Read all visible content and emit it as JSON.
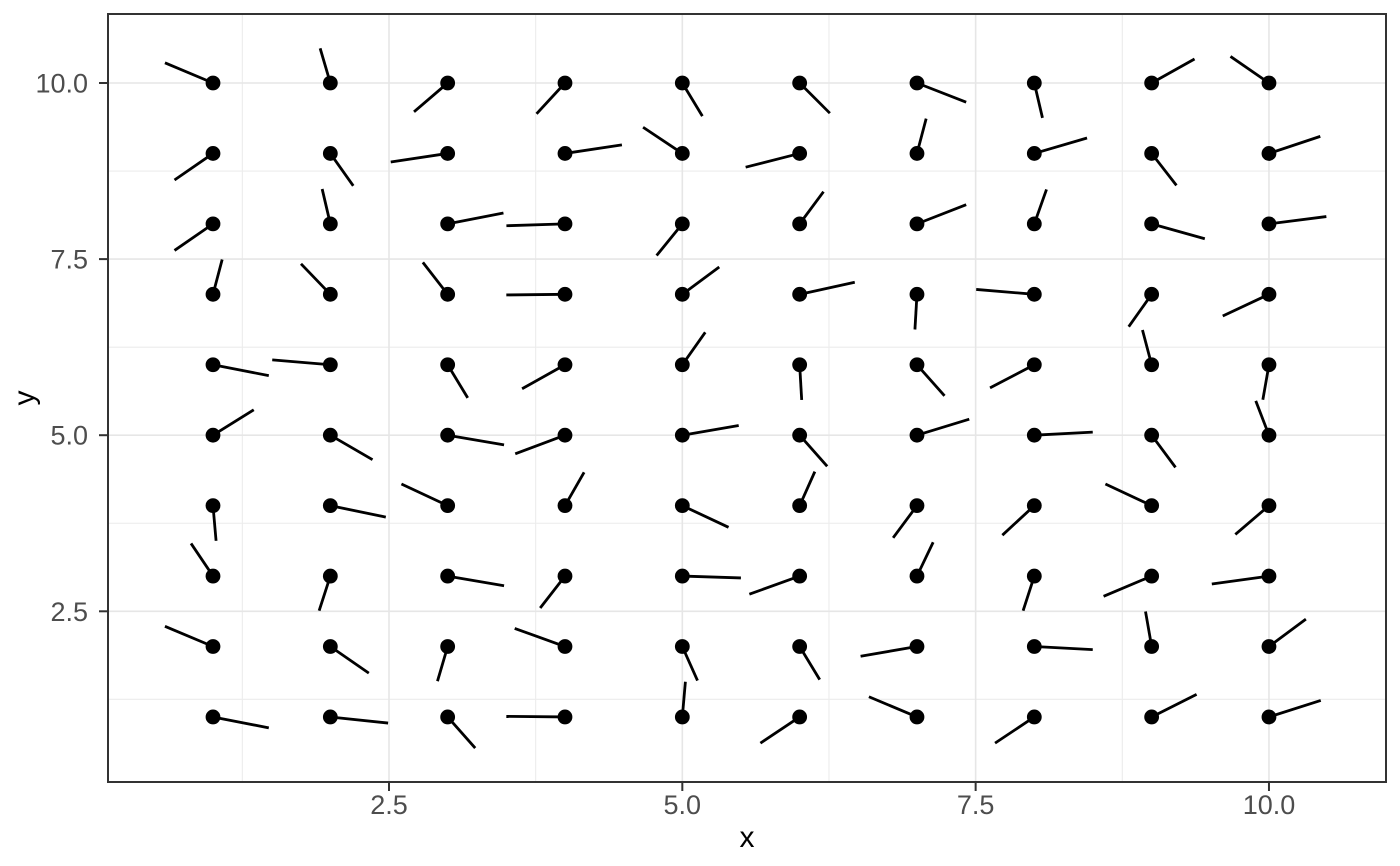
{
  "chart_data": {
    "type": "scatter",
    "subtype": "spoke-vector-field",
    "title": "",
    "xlabel": "x",
    "ylabel": "y",
    "xlim": [
      0.1,
      11.0
    ],
    "ylim": [
      0.08,
      10.98
    ],
    "grid": "major+minor",
    "legend": "none",
    "x_ticks": [
      {
        "v": 2.5,
        "label": "2.5"
      },
      {
        "v": 5.0,
        "label": "5.0"
      },
      {
        "v": 7.5,
        "label": "7.5"
      },
      {
        "v": 10.0,
        "label": "10.0"
      }
    ],
    "y_ticks": [
      {
        "v": 2.5,
        "label": "2.5"
      },
      {
        "v": 5.0,
        "label": "5.0"
      },
      {
        "v": 7.5,
        "label": "7.5"
      },
      {
        "v": 10.0,
        "label": "10.0"
      }
    ],
    "x_minor": [
      1.25,
      3.75,
      6.25,
      8.75
    ],
    "y_minor": [
      1.25,
      3.75,
      6.25,
      8.75
    ],
    "spoke_radius": 0.5,
    "spokes": [
      [
        1,
        10,
        145
      ],
      [
        2,
        10,
        100
      ],
      [
        3,
        10,
        -125
      ],
      [
        4,
        10,
        -119
      ],
      [
        5,
        10,
        -70
      ],
      [
        6,
        10,
        -59
      ],
      [
        7,
        10,
        -33
      ],
      [
        8,
        10,
        -82
      ],
      [
        9,
        10,
        43
      ],
      [
        10,
        10,
        131
      ],
      [
        1,
        9,
        -131
      ],
      [
        2,
        9,
        -67
      ],
      [
        3,
        9,
        194
      ],
      [
        4,
        9,
        14
      ],
      [
        5,
        9,
        132
      ],
      [
        6,
        9,
        -157
      ],
      [
        7,
        9,
        81
      ],
      [
        8,
        9,
        26
      ],
      [
        9,
        9,
        -65
      ],
      [
        10,
        9,
        29
      ],
      [
        1,
        8,
        -131
      ],
      [
        2,
        8,
        98
      ],
      [
        3,
        8,
        18
      ],
      [
        4,
        8,
        183
      ],
      [
        5,
        8,
        -116
      ],
      [
        6,
        8,
        66
      ],
      [
        7,
        8,
        33
      ],
      [
        8,
        8,
        78
      ],
      [
        9,
        8,
        -25
      ],
      [
        10,
        8,
        12
      ],
      [
        1,
        7,
        81
      ],
      [
        2,
        7,
        120
      ],
      [
        3,
        7,
        115
      ],
      [
        4,
        7,
        181
      ],
      [
        5,
        7,
        51
      ],
      [
        6,
        7,
        20
      ],
      [
        7,
        7,
        -92
      ],
      [
        8,
        7,
        172
      ],
      [
        9,
        7,
        -113
      ],
      [
        10,
        7,
        -142
      ],
      [
        1,
        6,
        -18
      ],
      [
        2,
        6,
        172
      ],
      [
        3,
        6,
        -70
      ],
      [
        4,
        6,
        -137
      ],
      [
        5,
        6,
        67
      ],
      [
        6,
        6,
        -88
      ],
      [
        7,
        6,
        -62
      ],
      [
        8,
        6,
        -139
      ],
      [
        9,
        6,
        99
      ],
      [
        10,
        6,
        -96
      ],
      [
        1,
        5,
        46
      ],
      [
        2,
        5,
        -44
      ],
      [
        3,
        5,
        -16
      ],
      [
        4,
        5,
        -148
      ],
      [
        5,
        5,
        16
      ],
      [
        6,
        5,
        -62
      ],
      [
        7,
        5,
        27
      ],
      [
        8,
        5,
        5
      ],
      [
        9,
        5,
        -66
      ],
      [
        10,
        5,
        103
      ],
      [
        1,
        4,
        -87
      ],
      [
        2,
        4,
        -19
      ],
      [
        3,
        4,
        142
      ],
      [
        4,
        4,
        71
      ],
      [
        5,
        4,
        -38
      ],
      [
        6,
        4,
        75
      ],
      [
        7,
        4,
        -114
      ],
      [
        8,
        4,
        -123
      ],
      [
        9,
        4,
        142
      ],
      [
        10,
        4,
        -125
      ],
      [
        1,
        3,
        112
      ],
      [
        2,
        3,
        -101
      ],
      [
        3,
        3,
        -16
      ],
      [
        4,
        3,
        -115
      ],
      [
        5,
        3,
        -3
      ],
      [
        6,
        3,
        -149
      ],
      [
        7,
        3,
        74
      ],
      [
        8,
        3,
        -101
      ],
      [
        9,
        3,
        -145
      ],
      [
        10,
        3,
        -167
      ],
      [
        1,
        2,
        145
      ],
      [
        2,
        2,
        -49
      ],
      [
        3,
        2,
        -100
      ],
      [
        4,
        2,
        149
      ],
      [
        5,
        2,
        -75
      ],
      [
        6,
        2,
        -70
      ],
      [
        7,
        2,
        -164
      ],
      [
        8,
        2,
        -5
      ],
      [
        9,
        2,
        96
      ],
      [
        10,
        2,
        51
      ],
      [
        1,
        1,
        -18
      ],
      [
        2,
        1,
        -10
      ],
      [
        3,
        1,
        -62
      ],
      [
        4,
        1,
        179
      ],
      [
        5,
        1,
        87
      ],
      [
        6,
        1,
        -132
      ],
      [
        7,
        1,
        145
      ],
      [
        8,
        1,
        -132
      ],
      [
        9,
        1,
        40
      ],
      [
        10,
        1,
        28
      ]
    ],
    "colors": {
      "background": "#ffffff",
      "panel_background": "#ffffff",
      "panel_border": "#333333",
      "grid_major": "#e6e6e6",
      "grid_minor": "#ececec",
      "tick_mark": "#333333",
      "tick_label": "#4d4d4d",
      "axis_title": "#000000",
      "point": "#000000",
      "spoke": "#000000"
    }
  }
}
